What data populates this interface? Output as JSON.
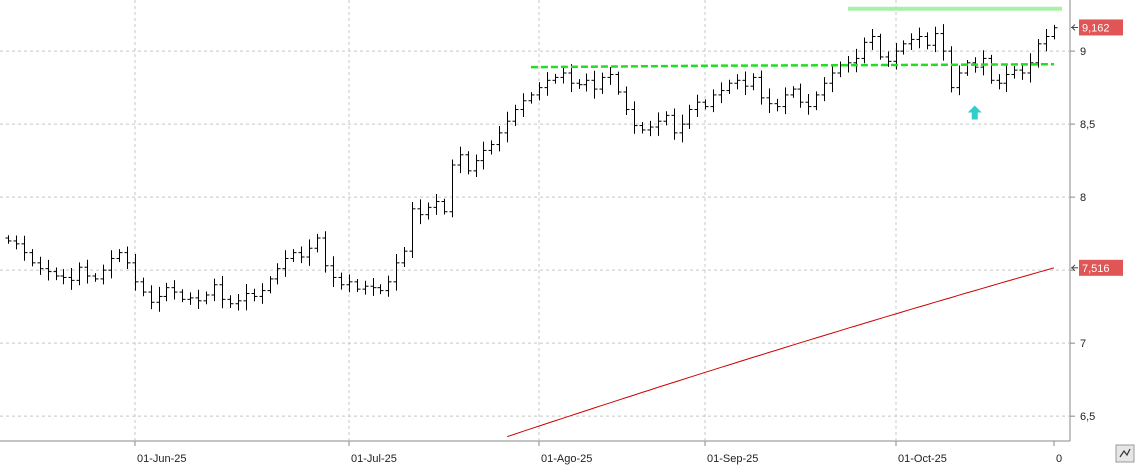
{
  "chart_data": {
    "type": "ohlc",
    "x_ticks": [
      "01-Jun-25",
      "01-Jul-25",
      "01-Ago-25",
      "01-Sep-25",
      "01-Oct-25",
      "0"
    ],
    "y_ticks": [
      "6,5",
      "7",
      "7,5",
      "8",
      "8,5",
      "9"
    ],
    "y_tick_values": [
      6.5,
      7,
      7.5,
      8,
      8.5,
      9
    ],
    "ylim": [
      6.33,
      9.35
    ],
    "last_price": {
      "value": 9.162,
      "label": "9,162"
    },
    "moving_average_last": {
      "value": 7.516,
      "label": "7,516"
    },
    "colors": {
      "bars": "#000000",
      "moving_average": "#cc0000",
      "resistance_line": "#22dd22",
      "top_line": "#a8f0a8",
      "arrow": "#33cccc",
      "price_label": "#e05555",
      "grid": "#c8c8c8"
    },
    "closes": [
      7.7,
      7.68,
      7.62,
      7.55,
      7.51,
      7.49,
      7.46,
      7.45,
      7.43,
      7.52,
      7.46,
      7.44,
      7.5,
      7.58,
      7.62,
      7.55,
      7.42,
      7.35,
      7.28,
      7.32,
      7.38,
      7.35,
      7.3,
      7.31,
      7.29,
      7.33,
      7.4,
      7.3,
      7.27,
      7.29,
      7.34,
      7.32,
      7.36,
      7.44,
      7.51,
      7.58,
      7.62,
      7.59,
      7.65,
      7.72,
      7.53,
      7.45,
      7.4,
      7.42,
      7.37,
      7.39,
      7.38,
      7.36,
      7.42,
      7.55,
      7.63,
      7.92,
      7.88,
      7.93,
      7.97,
      7.9,
      8.22,
      8.29,
      8.18,
      8.25,
      8.32,
      8.36,
      8.44,
      8.52,
      8.6,
      8.66,
      8.7,
      8.75,
      8.8,
      8.82,
      8.85,
      8.78,
      8.77,
      8.8,
      8.74,
      8.82,
      8.84,
      8.72,
      8.6,
      8.49,
      8.46,
      8.48,
      8.52,
      8.56,
      8.44,
      8.5,
      8.6,
      8.65,
      8.62,
      8.7,
      8.73,
      8.78,
      8.8,
      8.76,
      8.82,
      8.68,
      8.64,
      8.62,
      8.7,
      8.74,
      8.65,
      8.62,
      8.7,
      8.78,
      8.85,
      8.9,
      8.92,
      8.95,
      9.06,
      9.1,
      8.96,
      8.93,
      9.0,
      9.05,
      9.08,
      9.1,
      9.04,
      9.12,
      9.0,
      8.75,
      8.85,
      8.92,
      8.89,
      8.95,
      8.8,
      8.78,
      8.84,
      8.87,
      8.85,
      8.92,
      9.05,
      9.1,
      9.16
    ],
    "moving_average": {
      "name": "",
      "start": 6.36,
      "end": 7.516,
      "start_fraction": 0.47
    },
    "resistance_line": {
      "value": 8.91
    },
    "top_line": {
      "value": 9.29
    },
    "arrow": {
      "value": 8.58
    }
  }
}
